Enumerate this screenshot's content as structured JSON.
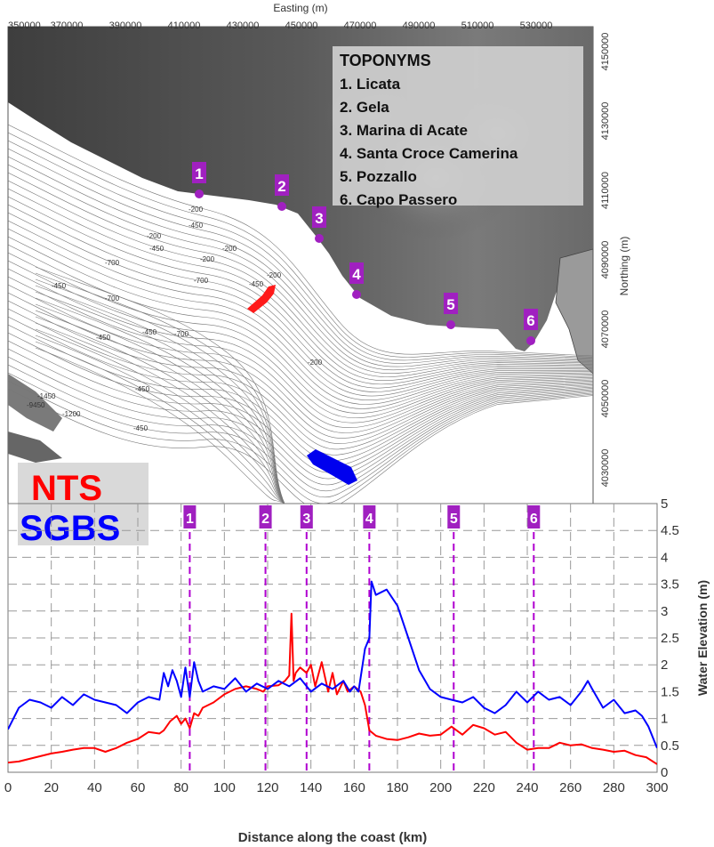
{
  "map": {
    "easting_label": "Easting (m)",
    "northing_label": "Northing (m)",
    "easting_ticks": [
      "350000",
      "370000",
      "390000",
      "410000",
      "430000",
      "450000",
      "470000",
      "490000",
      "510000",
      "530000"
    ],
    "northing_ticks": [
      "4150000",
      "4130000",
      "4110000",
      "4090000",
      "4070000",
      "4050000",
      "4030000"
    ],
    "contour_labels": [
      "-200",
      "-450",
      "-200",
      "-450",
      "-200",
      "-700",
      "-200",
      "-450",
      "-700",
      "-450",
      "-700",
      "-450",
      "-700",
      "-450",
      "-200",
      "-450",
      "-200",
      "-1450",
      "-9450",
      "-1200",
      "-450"
    ],
    "toponyms": {
      "title": "TOPONYMS",
      "items": [
        "1. Licata",
        "2. Gela",
        "3. Marina di Acate",
        "4. Santa Croce Camerina",
        "5. Pozzallo",
        "6. Capo Passero"
      ]
    },
    "markers": [
      "1",
      "2",
      "3",
      "4",
      "5",
      "6"
    ],
    "colors": {
      "land_dark": "#4a4a4a",
      "land_mid": "#8a8a8a",
      "marker": "#a020c0",
      "nts_area": "#ff1a1a",
      "sgbs_area": "#0000ee"
    }
  },
  "legend": {
    "nts": "NTS",
    "sgbs": "SGBS",
    "nts_color": "#ff0000",
    "sgbs_color": "#0000ff"
  },
  "chart_data": {
    "type": "line",
    "xlabel": "Distance along the coast (km)",
    "ylabel": "Water Elevation (m)",
    "xlim": [
      0,
      300
    ],
    "ylim": [
      0,
      5
    ],
    "x_ticks": [
      "0",
      "20",
      "40",
      "60",
      "80",
      "100",
      "120",
      "140",
      "160",
      "180",
      "200",
      "220",
      "240",
      "260",
      "280",
      "300"
    ],
    "y_ticks": [
      "0",
      "0.5",
      "1",
      "1.5",
      "2",
      "2.5",
      "3",
      "3.5",
      "4",
      "4.5",
      "5"
    ],
    "grid": true,
    "toponym_lines": [
      {
        "label": "1",
        "x": 84
      },
      {
        "label": "2",
        "x": 119
      },
      {
        "label": "3",
        "x": 138
      },
      {
        "label": "4",
        "x": 167
      },
      {
        "label": "5",
        "x": 206
      },
      {
        "label": "6",
        "x": 243
      }
    ],
    "series": [
      {
        "name": "NTS",
        "color": "#ff0000",
        "x": [
          0,
          5,
          10,
          15,
          20,
          25,
          30,
          35,
          40,
          45,
          50,
          55,
          60,
          65,
          70,
          72,
          75,
          78,
          80,
          82,
          84,
          86,
          88,
          90,
          95,
          100,
          105,
          110,
          115,
          118,
          120,
          125,
          128,
          130,
          131,
          132,
          133,
          135,
          138,
          140,
          142,
          145,
          148,
          150,
          152,
          155,
          157,
          160,
          163,
          165,
          167,
          170,
          175,
          180,
          185,
          190,
          195,
          200,
          205,
          210,
          215,
          220,
          225,
          230,
          235,
          240,
          245,
          250,
          255,
          260,
          265,
          270,
          275,
          280,
          285,
          290,
          295,
          300
        ],
        "y": [
          0.18,
          0.2,
          0.25,
          0.3,
          0.35,
          0.38,
          0.42,
          0.45,
          0.45,
          0.38,
          0.45,
          0.55,
          0.62,
          0.75,
          0.72,
          0.78,
          0.95,
          1.05,
          0.9,
          1.0,
          0.82,
          1.1,
          1.05,
          1.2,
          1.3,
          1.45,
          1.55,
          1.6,
          1.55,
          1.5,
          1.6,
          1.62,
          1.7,
          1.8,
          2.95,
          1.7,
          1.85,
          1.95,
          1.85,
          2.0,
          1.6,
          2.05,
          1.5,
          1.85,
          1.45,
          1.7,
          1.5,
          1.6,
          1.5,
          1.25,
          0.78,
          0.68,
          0.62,
          0.6,
          0.65,
          0.72,
          0.68,
          0.7,
          0.85,
          0.7,
          0.88,
          0.82,
          0.7,
          0.75,
          0.55,
          0.42,
          0.45,
          0.45,
          0.55,
          0.5,
          0.52,
          0.45,
          0.42,
          0.38,
          0.4,
          0.32,
          0.28,
          0.15
        ]
      },
      {
        "name": "SGBS",
        "color": "#0000ff",
        "x": [
          0,
          5,
          10,
          15,
          20,
          25,
          30,
          35,
          40,
          45,
          50,
          55,
          60,
          65,
          70,
          72,
          74,
          76,
          78,
          80,
          82,
          84,
          86,
          88,
          90,
          95,
          100,
          105,
          110,
          115,
          120,
          125,
          130,
          135,
          140,
          145,
          150,
          155,
          158,
          160,
          162,
          165,
          167,
          168,
          170,
          175,
          180,
          185,
          190,
          195,
          200,
          205,
          210,
          215,
          220,
          225,
          230,
          235,
          240,
          245,
          250,
          255,
          260,
          265,
          268,
          270,
          275,
          280,
          285,
          290,
          293,
          296,
          300
        ],
        "y": [
          0.8,
          1.2,
          1.35,
          1.3,
          1.2,
          1.4,
          1.25,
          1.45,
          1.35,
          1.3,
          1.25,
          1.1,
          1.3,
          1.4,
          1.35,
          1.85,
          1.6,
          1.9,
          1.7,
          1.4,
          1.95,
          1.4,
          2.05,
          1.7,
          1.5,
          1.6,
          1.55,
          1.75,
          1.5,
          1.65,
          1.55,
          1.7,
          1.6,
          1.75,
          1.5,
          1.65,
          1.55,
          1.7,
          1.5,
          1.6,
          1.5,
          2.3,
          2.5,
          3.55,
          3.3,
          3.4,
          3.1,
          2.5,
          1.9,
          1.55,
          1.4,
          1.35,
          1.3,
          1.4,
          1.2,
          1.1,
          1.25,
          1.5,
          1.3,
          1.5,
          1.35,
          1.4,
          1.25,
          1.5,
          1.7,
          1.55,
          1.2,
          1.35,
          1.1,
          1.15,
          1.05,
          0.85,
          0.45
        ]
      }
    ]
  }
}
